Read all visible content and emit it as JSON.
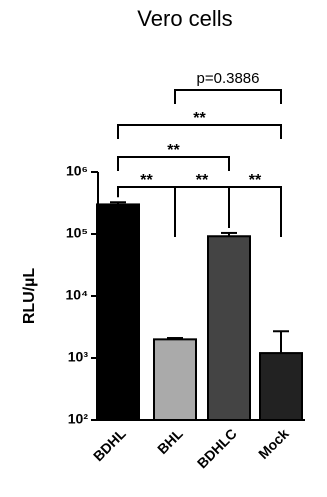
{
  "chart_data": {
    "type": "bar",
    "title": "Vero cells",
    "y_label": "RLU/µL",
    "categories": [
      "BDHL",
      "BHL",
      "BDHLC",
      "Mock"
    ],
    "values": [
      300000,
      2000,
      92000,
      1200
    ],
    "errors": [
      25000,
      100,
      12000,
      1500
    ],
    "colors": [
      "#000000",
      "#aaaaaa",
      "#444444",
      "#222222"
    ],
    "y_scale": "log",
    "ylim": [
      100,
      1000000
    ],
    "yticks": [
      {
        "value": 100,
        "label": "10²"
      },
      {
        "value": 1000,
        "label": "10³"
      },
      {
        "value": 10000,
        "label": "10⁴"
      },
      {
        "value": 100000,
        "label": "10⁵"
      },
      {
        "value": 1000000,
        "label": "10⁶"
      }
    ],
    "comparisons": [
      {
        "from": "BDHL",
        "to": "BHL",
        "label": "**"
      },
      {
        "from": "BHL",
        "to": "BDHLC",
        "label": "**"
      },
      {
        "from": "BDHLC",
        "to": "Mock",
        "label": "**"
      },
      {
        "from": "BDHL",
        "to": "BDHLC",
        "label": "**"
      },
      {
        "from": "BDHL",
        "to": "Mock",
        "label": "**"
      },
      {
        "from": "BHL",
        "to": "Mock",
        "label": "p=0.3886"
      }
    ]
  }
}
